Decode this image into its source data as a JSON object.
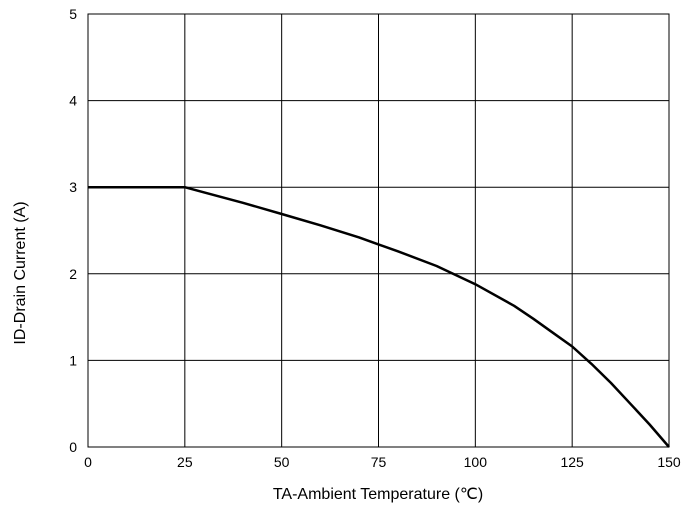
{
  "chart_data": {
    "type": "line",
    "title": "",
    "xlabel": "TA-Ambient Temperature (℃)",
    "ylabel": "ID-Drain Current (A)",
    "xlim": [
      0,
      150
    ],
    "ylim": [
      0,
      5
    ],
    "xticks": [
      0,
      25,
      50,
      75,
      100,
      125,
      150
    ],
    "yticks": [
      0,
      1,
      2,
      3,
      4,
      5
    ],
    "grid": true,
    "series": [
      {
        "x": [
          0,
          25,
          30,
          40,
          50,
          60,
          70,
          75,
          80,
          90,
          100,
          110,
          115,
          120,
          125,
          130,
          135,
          140,
          145,
          150
        ],
        "y": [
          3.0,
          3.0,
          2.94,
          2.82,
          2.69,
          2.56,
          2.42,
          2.34,
          2.26,
          2.09,
          1.88,
          1.63,
          1.48,
          1.32,
          1.16,
          0.96,
          0.74,
          0.5,
          0.26,
          0.0
        ]
      }
    ],
    "colors": {
      "line": "#000000",
      "grid": "#000000",
      "background": "#ffffff"
    }
  }
}
